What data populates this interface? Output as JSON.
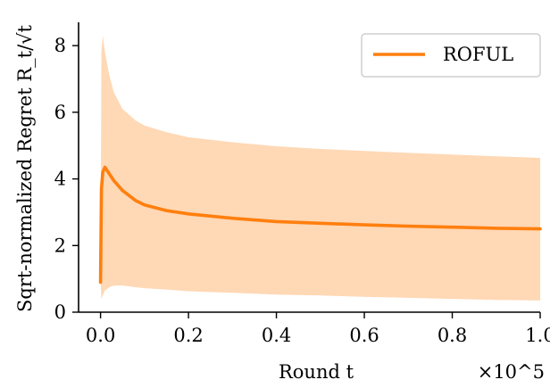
{
  "chart_data": {
    "type": "line",
    "xlabel": "Round t",
    "ylabel": "Sqrt-normalized Regret R_t/√t",
    "x_multiplier_label": "×10^5",
    "xlim": [
      -0.05,
      1.0
    ],
    "ylim": [
      0,
      8.7
    ],
    "xticks": [
      0.0,
      0.2,
      0.4,
      0.6,
      0.8,
      1.0
    ],
    "xtick_labels": [
      "0.0",
      "0.2",
      "0.4",
      "0.6",
      "0.8",
      "1.0"
    ],
    "yticks": [
      0,
      2,
      4,
      6,
      8
    ],
    "ytick_labels": [
      "0",
      "2",
      "4",
      "6",
      "8"
    ],
    "grid": false,
    "legend_position": "top-right",
    "series": [
      {
        "name": "ROFUL",
        "color": "#ff7f0e",
        "band_color": "#ffd8b5",
        "x": [
          0.0,
          0.002,
          0.005,
          0.01,
          0.02,
          0.03,
          0.05,
          0.08,
          0.1,
          0.15,
          0.2,
          0.3,
          0.4,
          0.5,
          0.6,
          0.7,
          0.8,
          0.9,
          1.0
        ],
        "values": [
          0.9,
          3.7,
          4.2,
          4.35,
          4.15,
          3.95,
          3.65,
          3.35,
          3.22,
          3.05,
          2.95,
          2.82,
          2.72,
          2.67,
          2.62,
          2.58,
          2.55,
          2.52,
          2.5
        ],
        "lower": [
          0.9,
          0.4,
          0.5,
          0.65,
          0.75,
          0.8,
          0.8,
          0.75,
          0.72,
          0.68,
          0.63,
          0.58,
          0.53,
          0.5,
          0.46,
          0.43,
          0.4,
          0.37,
          0.35
        ],
        "upper": [
          0.9,
          7.8,
          8.3,
          7.8,
          7.1,
          6.6,
          6.1,
          5.75,
          5.6,
          5.4,
          5.25,
          5.1,
          4.98,
          4.9,
          4.84,
          4.78,
          4.73,
          4.68,
          4.63
        ]
      }
    ]
  }
}
